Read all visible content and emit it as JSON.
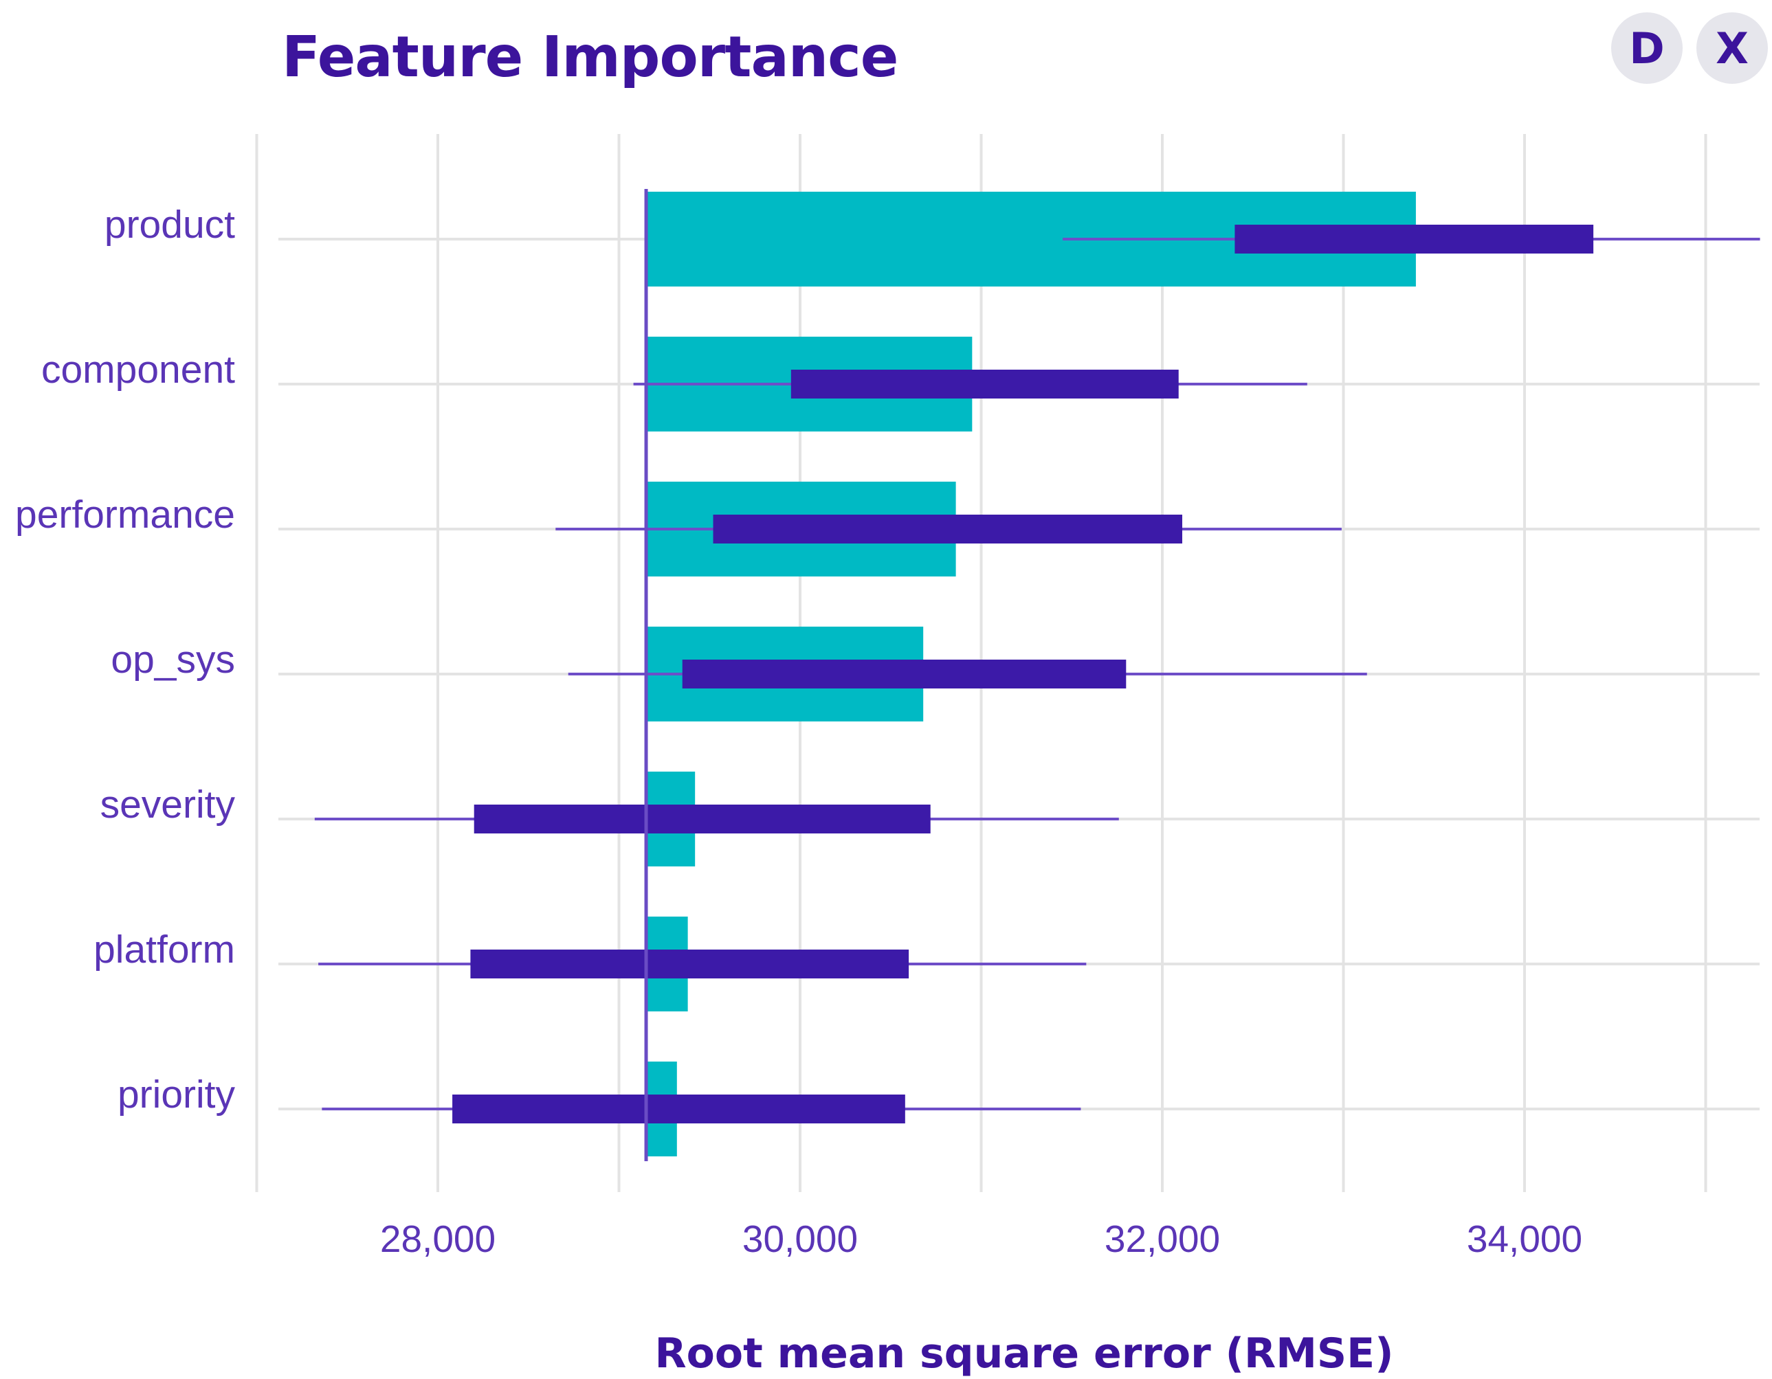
{
  "title": "Feature Importance",
  "buttons": {
    "d_label": "D",
    "x_label": "X"
  },
  "colors": {
    "bar": "#00bac4",
    "interval": "#3c1aa8",
    "whisker": "#6e4ec8",
    "baseline": "#6a4cc4",
    "grid": "#e3e3e3",
    "text": "#3c149c"
  },
  "chart_data": {
    "type": "bar",
    "orientation": "horizontal",
    "title": "Feature Importance",
    "xlabel": "Root mean square error (RMSE)",
    "ylabel": "",
    "xlim": [
      26800,
      35300
    ],
    "xticks": [
      28000,
      30000,
      32000,
      34000
    ],
    "xtick_labels": [
      "28,000",
      "30,000",
      "32,000",
      "34,000"
    ],
    "baseline": 29150,
    "grid": true,
    "categories": [
      "product",
      "component",
      "performance",
      "op_sys",
      "severity",
      "platform",
      "priority"
    ],
    "series": [
      {
        "kind": "bar",
        "values": [
          33400,
          30950,
          30860,
          30680,
          29420,
          29380,
          29320
        ]
      },
      {
        "kind": "interval",
        "low": [
          32400,
          29950,
          29520,
          29350,
          28200,
          28180,
          28080
        ],
        "high": [
          34380,
          32090,
          32110,
          31800,
          30720,
          30600,
          30580
        ]
      },
      {
        "kind": "whisker",
        "low": [
          31450,
          29080,
          28650,
          28720,
          27320,
          27340,
          27360
        ],
        "high": [
          35300,
          32800,
          32990,
          33130,
          31760,
          31580,
          31550
        ]
      }
    ]
  }
}
